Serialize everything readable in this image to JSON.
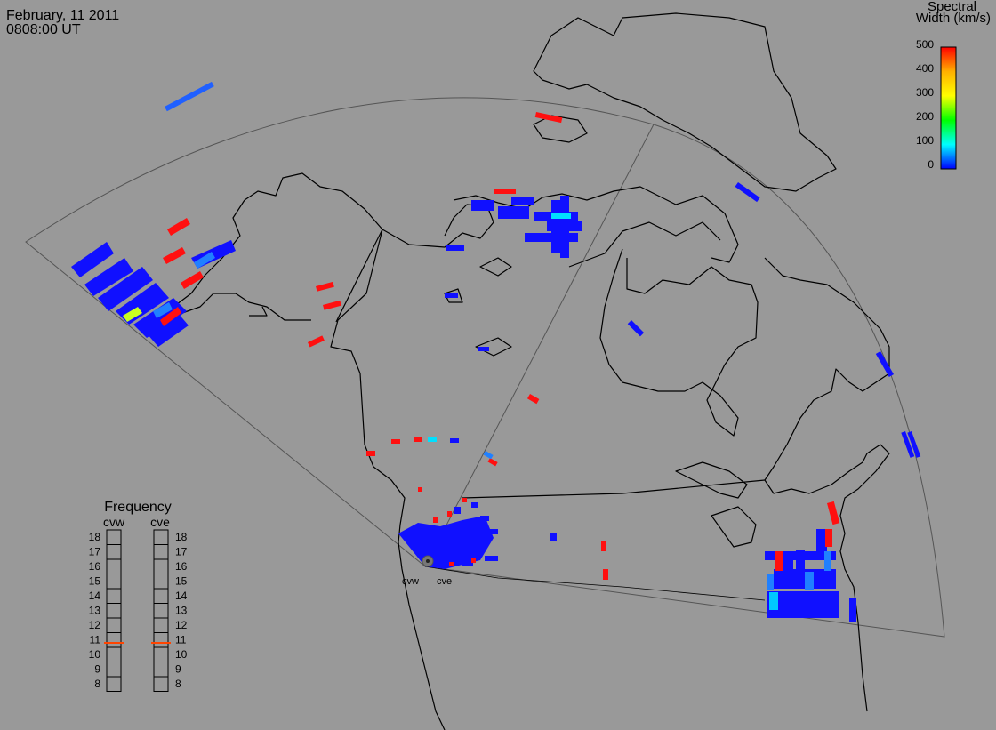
{
  "header": {
    "date": "February, 11 2011",
    "time": "0808:00 UT"
  },
  "colorbar": {
    "title_line1": "Spectral",
    "title_line2": "Width (km/s)",
    "ticks": [
      "500",
      "400",
      "300",
      "200",
      "100",
      "0"
    ],
    "colors": [
      "#ff0000",
      "#ffb000",
      "#ffff00",
      "#00ff00",
      "#00ffff",
      "#0000ff"
    ]
  },
  "frequency_panel": {
    "title": "Frequency",
    "radars": [
      {
        "label": "cvw",
        "value_mhz": 10.8
      },
      {
        "label": "cve",
        "value_mhz": 10.8
      }
    ],
    "scale": [
      "18",
      "17",
      "16",
      "15",
      "14",
      "13",
      "12",
      "11",
      "10",
      "9",
      "8"
    ],
    "indicator_color": "#ff4400"
  },
  "site_labels": [
    "cvw",
    "cve"
  ],
  "colors": {
    "background": "#999999",
    "coastline": "#000000",
    "fov_outline": "#555555"
  }
}
